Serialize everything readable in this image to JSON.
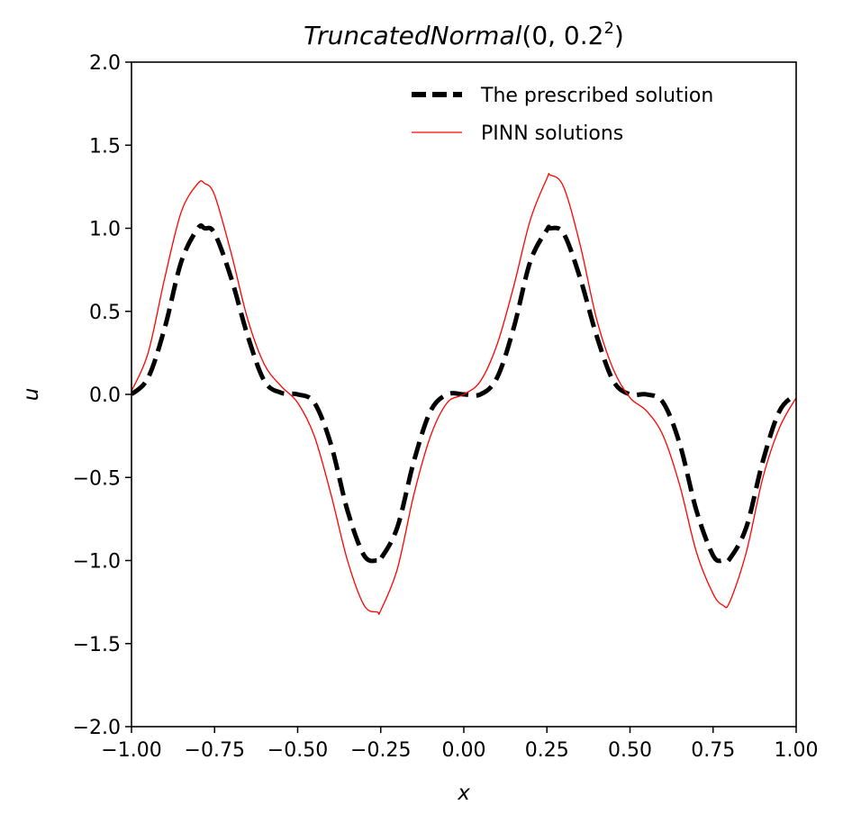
{
  "chart_data": {
    "type": "line",
    "title": {
      "name": "TruncatedNormal",
      "args": "(0, 0.2",
      "superscript": "2",
      "close": ")"
    },
    "xlabel": "x",
    "ylabel": "u",
    "xlim": [
      -1.0,
      1.0
    ],
    "ylim": [
      -2.0,
      2.0
    ],
    "xticks": [
      -1.0,
      -0.75,
      -0.5,
      -0.25,
      0.0,
      0.25,
      0.5,
      0.75,
      1.0
    ],
    "xtick_labels": [
      "−1.00",
      "−0.75",
      "−0.50",
      "−0.25",
      "0.00",
      "0.25",
      "0.50",
      "0.75",
      "1.00"
    ],
    "yticks": [
      -2.0,
      -1.5,
      -1.0,
      -0.5,
      0.0,
      0.5,
      1.0,
      1.5,
      2.0
    ],
    "ytick_labels": [
      "−2.0",
      "−1.5",
      "−1.0",
      "−0.5",
      "0.0",
      "0.5",
      "1.0",
      "1.5",
      "2.0"
    ],
    "grid": false,
    "legend_position": "top-right",
    "series": [
      {
        "name": "The prescribed solution",
        "style": "dashed",
        "color": "#000000",
        "x": [
          -1.0,
          -0.95,
          -0.9,
          -0.85,
          -0.8,
          -0.78,
          -0.75,
          -0.7,
          -0.65,
          -0.6,
          -0.55,
          -0.5,
          -0.45,
          -0.4,
          -0.35,
          -0.3,
          -0.26,
          -0.25,
          -0.2,
          -0.15,
          -0.1,
          -0.05,
          0.0,
          0.05,
          0.1,
          0.15,
          0.2,
          0.25,
          0.26,
          0.3,
          0.35,
          0.4,
          0.45,
          0.5,
          0.55,
          0.6,
          0.65,
          0.7,
          0.75,
          0.78,
          0.8,
          0.85,
          0.9,
          0.95,
          1.0
        ],
        "y": [
          0.0,
          0.1,
          0.4,
          0.8,
          1.0,
          1.0,
          0.97,
          0.7,
          0.35,
          0.08,
          0.01,
          0.0,
          -0.05,
          -0.3,
          -0.7,
          -0.97,
          -1.0,
          -0.99,
          -0.8,
          -0.4,
          -0.1,
          0.0,
          0.0,
          0.0,
          0.1,
          0.4,
          0.8,
          0.99,
          1.0,
          0.97,
          0.7,
          0.35,
          0.08,
          0.0,
          0.0,
          -0.05,
          -0.3,
          -0.7,
          -0.97,
          -1.0,
          -0.99,
          -0.8,
          -0.4,
          -0.1,
          0.0
        ]
      },
      {
        "name": "PINN solutions",
        "style": "solid",
        "color": "#ff0000",
        "x": [
          -1.0,
          -0.95,
          -0.9,
          -0.85,
          -0.8,
          -0.78,
          -0.75,
          -0.7,
          -0.65,
          -0.6,
          -0.55,
          -0.5,
          -0.45,
          -0.4,
          -0.35,
          -0.3,
          -0.26,
          -0.25,
          -0.2,
          -0.15,
          -0.1,
          -0.05,
          0.0,
          0.05,
          0.1,
          0.15,
          0.2,
          0.25,
          0.26,
          0.3,
          0.35,
          0.4,
          0.45,
          0.5,
          0.55,
          0.6,
          0.65,
          0.7,
          0.75,
          0.78,
          0.8,
          0.85,
          0.9,
          0.95,
          1.0
        ],
        "y": [
          0.02,
          0.25,
          0.7,
          1.1,
          1.27,
          1.27,
          1.2,
          0.85,
          0.45,
          0.18,
          0.05,
          -0.05,
          -0.25,
          -0.6,
          -1.0,
          -1.27,
          -1.31,
          -1.3,
          -1.05,
          -0.6,
          -0.25,
          -0.05,
          0.0,
          0.08,
          0.3,
          0.65,
          1.05,
          1.3,
          1.32,
          1.25,
          0.9,
          0.45,
          0.15,
          -0.02,
          -0.1,
          -0.25,
          -0.55,
          -0.95,
          -1.2,
          -1.27,
          -1.25,
          -0.95,
          -0.5,
          -0.2,
          -0.02
        ]
      }
    ]
  }
}
